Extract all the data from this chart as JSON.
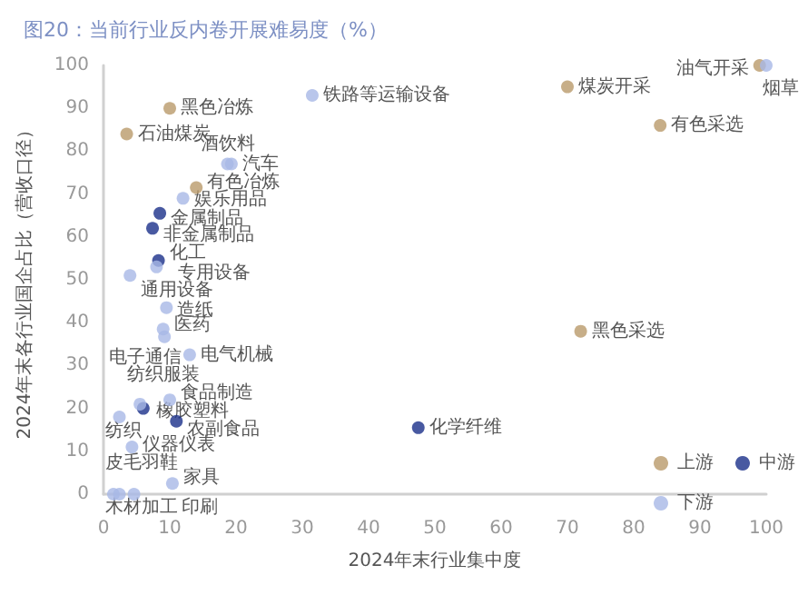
{
  "chart_data": {
    "type": "scatter",
    "title": "图20：当前行业反内卷开展难易度（%）",
    "xlabel": "2024年末行业集中度",
    "ylabel": "2024年末各行业国企占比（营收口径）",
    "xlim": [
      0,
      100
    ],
    "xticks": [
      0,
      10,
      20,
      30,
      40,
      50,
      60,
      70,
      80,
      90,
      100
    ],
    "ylim": [
      0,
      100
    ],
    "yticks": [
      0,
      10,
      20,
      30,
      40,
      50,
      60,
      70,
      80,
      90,
      100
    ],
    "grid": false,
    "legend": "bottom right",
    "marker": "circle",
    "series": [
      {
        "name": "上游",
        "color": "#b99a6a",
        "x": [
          99,
          70,
          84,
          10,
          3.5,
          14,
          72
        ],
        "values": [
          100,
          95,
          86,
          90,
          84,
          71.5,
          38
        ]
      },
      {
        "name": "中游",
        "color": "#1a2f8a",
        "x": [
          8.5,
          7.4,
          8.3,
          6,
          11,
          47.5
        ],
        "values": [
          65.5,
          62,
          54.5,
          20,
          17,
          15.5
        ]
      },
      {
        "name": "下游",
        "color": "#a8b8e6",
        "x": [
          100,
          31.5,
          18.7,
          19.3,
          12,
          8,
          4,
          9.5,
          9,
          9.2,
          13,
          5.5,
          10,
          2.4,
          4.3,
          10.4,
          1.5,
          2.4,
          4.6
        ],
        "values": [
          100,
          93,
          77,
          77,
          69,
          53,
          51,
          43.5,
          38.5,
          36.7,
          32.5,
          21,
          22,
          18,
          11,
          2.5,
          0,
          0,
          0
        ]
      }
    ],
    "annotations": [
      {
        "text": "油气开采",
        "x": 99,
        "y": 100
      },
      {
        "text": "煤炭开采",
        "x": 70,
        "y": 95
      },
      {
        "text": "有色采选",
        "x": 84,
        "y": 86
      },
      {
        "text": "黑色冶炼",
        "x": 10,
        "y": 90
      },
      {
        "text": "石油煤炭",
        "x": 3.5,
        "y": 84
      },
      {
        "text": "有色冶炼",
        "x": 14,
        "y": 71.5
      },
      {
        "text": "黑色采选",
        "x": 72,
        "y": 38
      },
      {
        "text": "金属制品",
        "x": 8.5,
        "y": 65.5
      },
      {
        "text": "非金属制品",
        "x": 7.4,
        "y": 62
      },
      {
        "text": "化工",
        "x": 8.3,
        "y": 54.5
      },
      {
        "text": "橡胶塑料",
        "x": 6,
        "y": 20
      },
      {
        "text": "农副食品",
        "x": 11,
        "y": 17
      },
      {
        "text": "化学纤维",
        "x": 47.5,
        "y": 15.5
      },
      {
        "text": "烟草",
        "x": 100,
        "y": 100
      },
      {
        "text": "铁路等运输设备",
        "x": 31.5,
        "y": 93
      },
      {
        "text": "酒饮料",
        "x": 18.7,
        "y": 77
      },
      {
        "text": "汽车",
        "x": 19.3,
        "y": 77
      },
      {
        "text": "娱乐用品",
        "x": 12,
        "y": 69
      },
      {
        "text": "专用设备",
        "x": 8,
        "y": 53
      },
      {
        "text": "通用设备",
        "x": 4,
        "y": 51
      },
      {
        "text": "造纸",
        "x": 9.5,
        "y": 43.5
      },
      {
        "text": "医药",
        "x": 9,
        "y": 38.5
      },
      {
        "text": "电子通信",
        "x": 9.2,
        "y": 36.7
      },
      {
        "text": "电气机械",
        "x": 13,
        "y": 32.5
      },
      {
        "text": "纺织服装",
        "x": 5.5,
        "y": 21
      },
      {
        "text": "食品制造",
        "x": 10,
        "y": 22
      },
      {
        "text": "纺织",
        "x": 2.4,
        "y": 18
      },
      {
        "text": "仪器仪表",
        "x": 4.3,
        "y": 11
      },
      {
        "text": "家具",
        "x": 10.4,
        "y": 2.5
      },
      {
        "text": "皮毛羽鞋",
        "x": 1.5,
        "y": 0
      },
      {
        "text": "木材加工",
        "x": 2.4,
        "y": 0
      },
      {
        "text": "印刷",
        "x": 4.6,
        "y": 0
      }
    ]
  }
}
